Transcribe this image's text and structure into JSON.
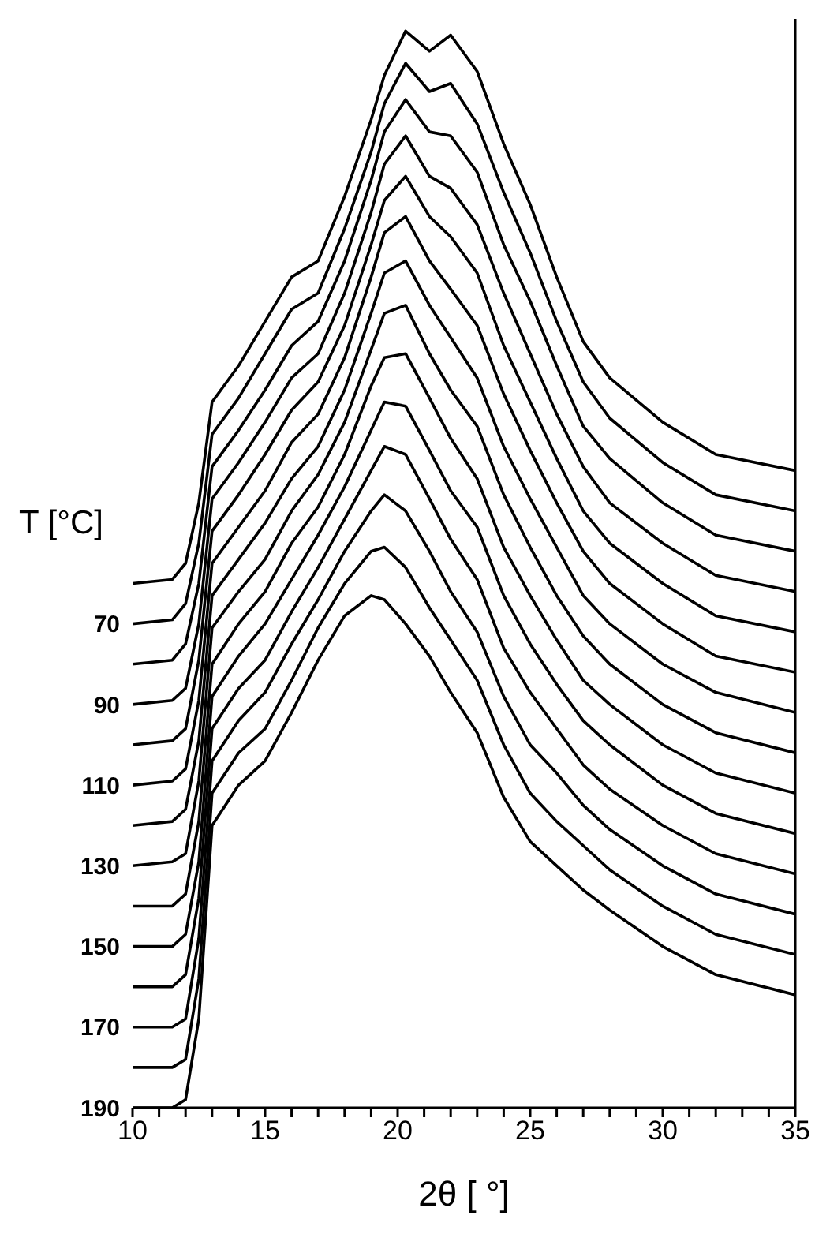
{
  "chart_data": {
    "type": "line",
    "xlabel": "2θ [ °]",
    "ylabel": "T [°C]",
    "x": [
      10,
      11.5,
      12,
      12.5,
      13,
      14,
      15,
      16,
      17,
      18,
      19,
      19.5,
      20.3,
      21.2,
      22,
      23,
      24,
      25,
      26,
      27,
      28,
      30,
      32,
      35
    ],
    "xlim": [
      10,
      35
    ],
    "xticks": [
      10,
      {
        "value": 11,
        "label": null
      },
      {
        "value": 12,
        "label": null
      },
      {
        "value": 13,
        "label": null
      },
      {
        "value": 14,
        "label": null
      },
      15,
      {
        "value": 16,
        "label": null
      },
      {
        "value": 17,
        "label": null
      },
      {
        "value": 18,
        "label": null
      },
      {
        "value": 19,
        "label": null
      },
      20,
      {
        "value": 21,
        "label": null
      },
      {
        "value": 22,
        "label": null
      },
      {
        "value": 23,
        "label": null
      },
      {
        "value": 24,
        "label": null
      },
      25,
      {
        "value": 26,
        "label": null
      },
      {
        "value": 27,
        "label": null
      },
      {
        "value": 28,
        "label": null
      },
      {
        "value": 29,
        "label": null
      },
      30,
      {
        "value": 31,
        "label": null
      },
      {
        "value": 32,
        "label": null
      },
      {
        "value": 33,
        "label": null
      },
      {
        "value": 34,
        "label": null
      },
      35
    ],
    "ylim": [
      190,
      -80
    ],
    "yticks": [
      70,
      90,
      110,
      130,
      150,
      170,
      190
    ],
    "line_style": "solid",
    "series": [
      {
        "color": "#000000",
        "values": [
          60,
          59,
          55,
          40,
          15,
          6,
          -5,
          -16,
          -20,
          -36,
          -55,
          -66,
          -77,
          -72,
          -76,
          -67,
          -49,
          -34,
          -16,
          0,
          9,
          20,
          28,
          32
        ]
      },
      {
        "color": "#000000",
        "values": [
          70,
          69,
          65,
          50,
          23,
          14,
          3,
          -8,
          -12,
          -28,
          -47,
          -59,
          -69,
          -62,
          -64,
          -54,
          -37,
          -22,
          -5,
          10,
          19,
          30,
          38,
          42
        ]
      },
      {
        "color": "#000000",
        "values": [
          80,
          79,
          75,
          60,
          31,
          22,
          12,
          1,
          -5,
          -20,
          -40,
          -52,
          -60,
          -52,
          -51,
          -42,
          -24,
          -10,
          6,
          21,
          29,
          40,
          48,
          52
        ]
      },
      {
        "color": "#000000",
        "values": [
          90,
          89,
          86,
          70,
          39,
          30,
          20,
          9,
          3,
          -12,
          -32,
          -44,
          -51,
          -41,
          -38,
          -29,
          -12,
          3,
          18,
          31,
          40,
          50,
          58,
          62
        ]
      },
      {
        "color": "#000000",
        "values": [
          100,
          99,
          96,
          79,
          47,
          38,
          28,
          17,
          10,
          -4,
          -24,
          -35,
          -41,
          -31,
          -26,
          -17,
          1,
          15,
          29,
          42,
          50,
          60,
          68,
          72
        ]
      },
      {
        "color": "#000000",
        "values": [
          110,
          109,
          106,
          89,
          55,
          46,
          37,
          25,
          18,
          4,
          -16,
          -27,
          -31,
          -20,
          -13,
          -4,
          13,
          27,
          40,
          52,
          60,
          70,
          78,
          82
        ]
      },
      {
        "color": "#000000",
        "values": [
          120,
          119,
          116,
          99,
          63,
          54,
          45,
          34,
          26,
          12,
          -7,
          -17,
          -20,
          -9,
          -1,
          9,
          26,
          39,
          51,
          63,
          70,
          80,
          87,
          92
        ]
      },
      {
        "color": "#000000",
        "values": [
          130,
          129,
          127,
          109,
          71,
          62,
          54,
          42,
          33,
          20,
          2,
          -7,
          -9,
          3,
          12,
          21,
          38,
          51,
          63,
          73,
          80,
          90,
          97,
          102
        ]
      },
      {
        "color": "#000000",
        "values": [
          140,
          140,
          137,
          119,
          80,
          70,
          62,
          50,
          41,
          28,
          11,
          4,
          3,
          14,
          24,
          34,
          51,
          63,
          74,
          84,
          90,
          100,
          107,
          112
        ]
      },
      {
        "color": "#000000",
        "values": [
          150,
          150,
          147,
          129,
          88,
          78,
          70,
          59,
          48,
          36,
          22,
          15,
          16,
          27,
          37,
          46,
          63,
          75,
          85,
          94,
          100,
          110,
          117,
          122
        ]
      },
      {
        "color": "#000000",
        "values": [
          160,
          160,
          157,
          138,
          96,
          86,
          79,
          67,
          56,
          44,
          32,
          26,
          28,
          39,
          49,
          59,
          76,
          87,
          96,
          105,
          111,
          120,
          127,
          132
        ]
      },
      {
        "color": "#000000",
        "values": [
          170,
          170,
          168,
          148,
          104,
          94,
          87,
          75,
          64,
          52,
          42,
          38,
          42,
          52,
          62,
          72,
          88,
          100,
          107,
          115,
          121,
          130,
          137,
          142
        ]
      },
      {
        "color": "#000000",
        "values": [
          180,
          180,
          178,
          158,
          112,
          102,
          96,
          84,
          71,
          60,
          52,
          51,
          56,
          66,
          74,
          84,
          100,
          112,
          119,
          125,
          131,
          140,
          147,
          152
        ]
      },
      {
        "color": "#000000",
        "values": [
          190,
          190,
          188,
          168,
          120,
          110,
          104,
          92,
          79,
          68,
          63,
          64,
          70,
          78,
          87,
          97,
          113,
          124,
          130,
          136,
          141,
          150,
          157,
          162
        ]
      }
    ]
  }
}
